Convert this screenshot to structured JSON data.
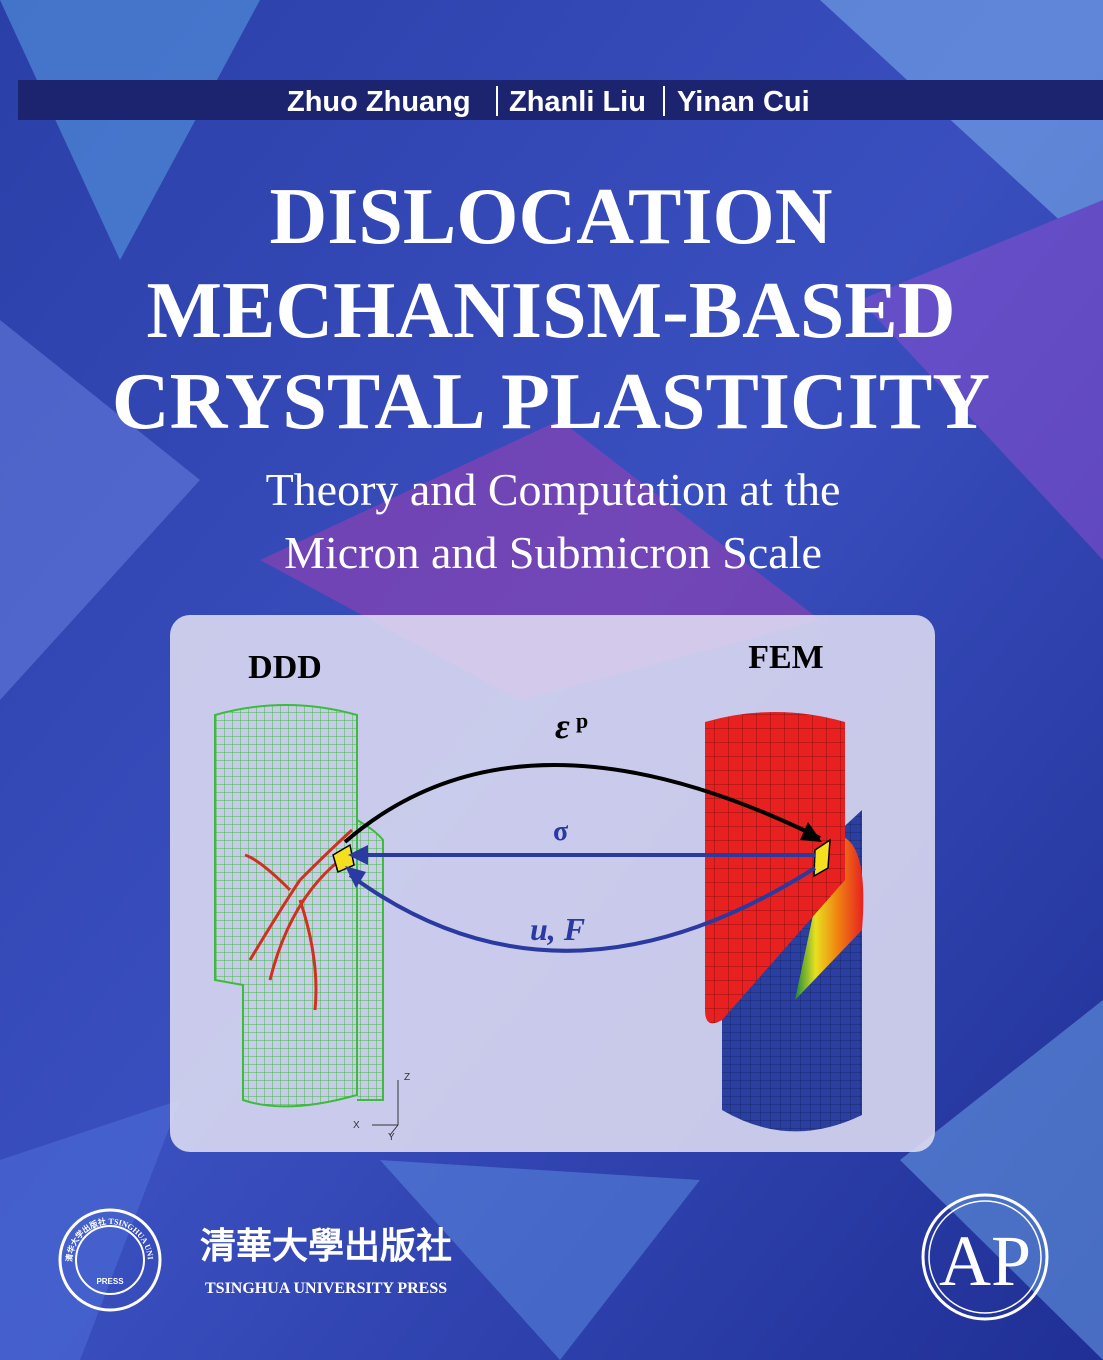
{
  "authors": [
    "Zhuo Zhuang",
    "Zhanli Liu",
    "Yinan Cui"
  ],
  "title": [
    "DISLOCATION",
    "MECHANISM-BASED",
    "CRYSTAL PLASTICITY"
  ],
  "subtitle": [
    "Theory and Computation at the",
    "Micron and Submicron Scale"
  ],
  "figure": {
    "left_label": "DDD",
    "right_label": "FEM",
    "arrows": {
      "top": "ε",
      "top_superscript": "p",
      "middle": "σ",
      "bottom": "u, F"
    },
    "axes": [
      "Z",
      "X",
      "Y"
    ]
  },
  "publisher": {
    "name_chinese": "清華大學出版社",
    "name": "TSINGHUA UNIVERSITY PRESS",
    "seal_text": "清华大学出版社 TSINGHUA UNIVERSITY",
    "seal_press": "PRESS"
  },
  "imprint_logo": "AP"
}
